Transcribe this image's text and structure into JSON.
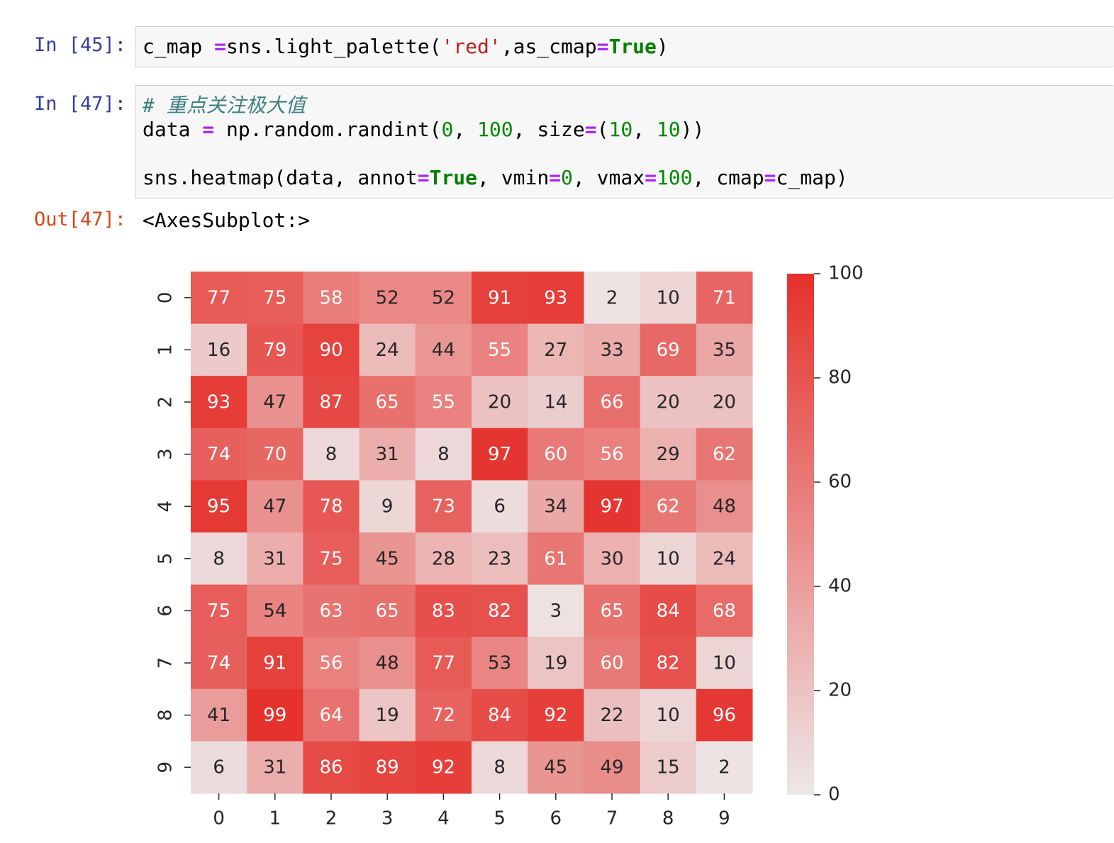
{
  "cells": [
    {
      "prompt": "In [45]:",
      "lines": [
        [
          {
            "text": "c_map ",
            "color": "#000000"
          },
          {
            "text": "=",
            "color": "#aa22ff",
            "bold": true
          },
          {
            "text": "sns.light_palette(",
            "color": "#000000"
          },
          {
            "text": "'red'",
            "color": "#ba2121"
          },
          {
            "text": ",as_cmap",
            "color": "#000000"
          },
          {
            "text": "=",
            "color": "#aa22ff",
            "bold": true
          },
          {
            "text": "True",
            "color": "#008000",
            "bold": true
          },
          {
            "text": ")",
            "color": "#000000"
          }
        ]
      ]
    },
    {
      "prompt": "In [47]:",
      "lines": [
        [
          {
            "text": "# 重点关注极大值",
            "color": "#408080",
            "italic": true
          }
        ],
        [
          {
            "text": "data ",
            "color": "#000000"
          },
          {
            "text": "=",
            "color": "#aa22ff",
            "bold": true
          },
          {
            "text": " np.random.randint(",
            "color": "#000000"
          },
          {
            "text": "0",
            "color": "#008800"
          },
          {
            "text": ", ",
            "color": "#000000"
          },
          {
            "text": "100",
            "color": "#008800"
          },
          {
            "text": ", size",
            "color": "#000000"
          },
          {
            "text": "=",
            "color": "#aa22ff",
            "bold": true
          },
          {
            "text": "(",
            "color": "#000000"
          },
          {
            "text": "10",
            "color": "#008800"
          },
          {
            "text": ", ",
            "color": "#000000"
          },
          {
            "text": "10",
            "color": "#008800"
          },
          {
            "text": "))",
            "color": "#000000"
          }
        ],
        [],
        [
          {
            "text": "sns.heatmap(data, annot",
            "color": "#000000"
          },
          {
            "text": "=",
            "color": "#aa22ff",
            "bold": true
          },
          {
            "text": "True",
            "color": "#008000",
            "bold": true
          },
          {
            "text": ", vmin",
            "color": "#000000"
          },
          {
            "text": "=",
            "color": "#aa22ff",
            "bold": true
          },
          {
            "text": "0",
            "color": "#008800"
          },
          {
            "text": ", vmax",
            "color": "#000000"
          },
          {
            "text": "=",
            "color": "#aa22ff",
            "bold": true
          },
          {
            "text": "100",
            "color": "#008800"
          },
          {
            "text": ", cmap",
            "color": "#000000"
          },
          {
            "text": "=",
            "color": "#aa22ff",
            "bold": true
          },
          {
            "text": "c_map)",
            "color": "#000000"
          }
        ]
      ]
    }
  ],
  "output": {
    "prompt": "Out[47]:",
    "text": "<AxesSubplot:>"
  },
  "chart_data": {
    "type": "heatmap",
    "x_categories": [
      "0",
      "1",
      "2",
      "3",
      "4",
      "5",
      "6",
      "7",
      "8",
      "9"
    ],
    "y_categories": [
      "0",
      "1",
      "2",
      "3",
      "4",
      "5",
      "6",
      "7",
      "8",
      "9"
    ],
    "values": [
      [
        77,
        75,
        58,
        52,
        52,
        91,
        93,
        2,
        10,
        71
      ],
      [
        16,
        79,
        90,
        24,
        44,
        55,
        27,
        33,
        69,
        35
      ],
      [
        93,
        47,
        87,
        65,
        55,
        20,
        14,
        66,
        20,
        20
      ],
      [
        74,
        70,
        8,
        31,
        8,
        97,
        60,
        56,
        29,
        62
      ],
      [
        95,
        47,
        78,
        9,
        73,
        6,
        34,
        97,
        62,
        48
      ],
      [
        8,
        31,
        75,
        45,
        28,
        23,
        61,
        30,
        10,
        24
      ],
      [
        75,
        54,
        63,
        65,
        83,
        82,
        3,
        65,
        84,
        68
      ],
      [
        74,
        91,
        56,
        48,
        77,
        53,
        19,
        60,
        82,
        10
      ],
      [
        41,
        99,
        64,
        19,
        72,
        84,
        92,
        22,
        10,
        96
      ],
      [
        6,
        31,
        86,
        89,
        92,
        8,
        45,
        49,
        15,
        2
      ]
    ],
    "clim": [
      0,
      100
    ],
    "cticks": [
      0,
      20,
      40,
      60,
      80,
      100
    ],
    "cmap": [
      "#ede7e7",
      "#e5302b"
    ]
  }
}
